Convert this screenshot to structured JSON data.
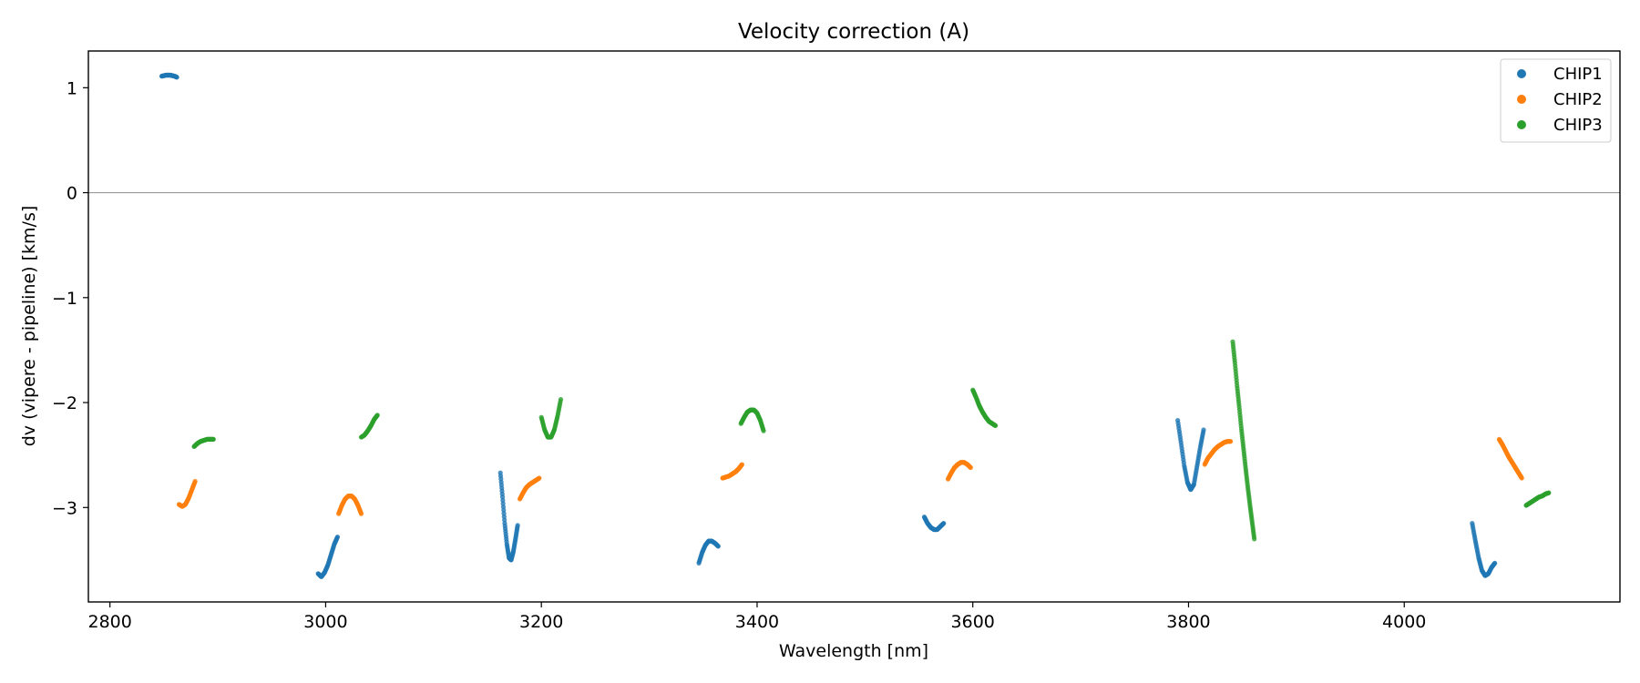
{
  "chart_data": {
    "type": "scatter",
    "title": "Velocity correction (A)",
    "xlabel": "Wavelength [nm]",
    "ylabel": "dv (vipere - pipeline) [km/s]",
    "xlim": [
      2780,
      4200
    ],
    "ylim": [
      -3.9,
      1.35
    ],
    "xticks": [
      2800,
      3000,
      3200,
      3400,
      3600,
      3800,
      4000
    ],
    "yticks": [
      1,
      0,
      -1,
      -2,
      -3
    ],
    "xtick_labels": [
      "2800",
      "3000",
      "3200",
      "3400",
      "3600",
      "3800",
      "4000"
    ],
    "ytick_labels": [
      "1",
      "0",
      "−1",
      "−2",
      "−3"
    ],
    "reference_line": {
      "y": 0,
      "color": "#999999"
    },
    "legend_position": "top-right",
    "series": [
      {
        "name": "CHIP1",
        "color": "#1f77b4",
        "segments": [
          {
            "x": [
              2848,
              2850,
              2852,
              2854,
              2856,
              2858,
              2860,
              2862
            ],
            "y": [
              1.11,
              1.115,
              1.12,
              1.12,
              1.12,
              1.115,
              1.11,
              1.1
            ]
          },
          {
            "x": [
              2993,
              2996,
              2999,
              3002,
              3005,
              3008,
              3011
            ],
            "y": [
              -3.63,
              -3.66,
              -3.62,
              -3.55,
              -3.45,
              -3.35,
              -3.28
            ]
          },
          {
            "x": [
              3162,
              3164,
              3166,
              3168,
              3170,
              3172,
              3174,
              3176,
              3178
            ],
            "y": [
              -2.67,
              -2.9,
              -3.15,
              -3.35,
              -3.48,
              -3.5,
              -3.42,
              -3.3,
              -3.17
            ]
          },
          {
            "x": [
              3346,
              3349,
              3352,
              3355,
              3358,
              3361,
              3364
            ],
            "y": [
              -3.53,
              -3.43,
              -3.36,
              -3.32,
              -3.32,
              -3.34,
              -3.37
            ]
          },
          {
            "x": [
              3555,
              3558,
              3561,
              3564,
              3567,
              3570,
              3573
            ],
            "y": [
              -3.09,
              -3.15,
              -3.19,
              -3.21,
              -3.21,
              -3.18,
              -3.15
            ]
          },
          {
            "x": [
              3790,
              3793,
              3796,
              3799,
              3802,
              3805,
              3808,
              3811,
              3814
            ],
            "y": [
              -2.17,
              -2.38,
              -2.6,
              -2.76,
              -2.83,
              -2.78,
              -2.6,
              -2.42,
              -2.26
            ]
          },
          {
            "x": [
              4063,
              4066,
              4069,
              4072,
              4075,
              4078,
              4081,
              4084
            ],
            "y": [
              -3.15,
              -3.32,
              -3.48,
              -3.6,
              -3.65,
              -3.63,
              -3.57,
              -3.53
            ]
          }
        ]
      },
      {
        "name": "CHIP2",
        "color": "#ff7f0e",
        "segments": [
          {
            "x": [
              2864,
              2867,
              2870,
              2873,
              2876,
              2879
            ],
            "y": [
              -2.97,
              -2.99,
              -2.97,
              -2.91,
              -2.83,
              -2.75
            ]
          },
          {
            "x": [
              3012,
              3015,
              3018,
              3021,
              3024,
              3027,
              3030,
              3033
            ],
            "y": [
              -3.06,
              -2.98,
              -2.92,
              -2.89,
              -2.89,
              -2.92,
              -2.98,
              -3.06
            ]
          },
          {
            "x": [
              3180,
              3183,
              3186,
              3189,
              3192,
              3195,
              3198
            ],
            "y": [
              -2.92,
              -2.86,
              -2.81,
              -2.78,
              -2.76,
              -2.74,
              -2.72
            ]
          },
          {
            "x": [
              3368,
              3371,
              3374,
              3377,
              3380,
              3383,
              3386
            ],
            "y": [
              -2.72,
              -2.71,
              -2.7,
              -2.68,
              -2.66,
              -2.63,
              -2.59
            ]
          },
          {
            "x": [
              3577,
              3580,
              3583,
              3586,
              3589,
              3592,
              3595,
              3598
            ],
            "y": [
              -2.73,
              -2.67,
              -2.62,
              -2.59,
              -2.57,
              -2.57,
              -2.59,
              -2.62
            ]
          },
          {
            "x": [
              3815,
              3818,
              3821,
              3824,
              3827,
              3830,
              3833,
              3836,
              3839
            ],
            "y": [
              -2.59,
              -2.53,
              -2.49,
              -2.45,
              -2.42,
              -2.4,
              -2.38,
              -2.37,
              -2.37
            ]
          },
          {
            "x": [
              4088,
              4091,
              4094,
              4097,
              4100,
              4103,
              4106,
              4109
            ],
            "y": [
              -2.35,
              -2.4,
              -2.46,
              -2.52,
              -2.57,
              -2.62,
              -2.67,
              -2.72
            ]
          }
        ]
      },
      {
        "name": "CHIP3",
        "color": "#2ca02c",
        "segments": [
          {
            "x": [
              2878,
              2881,
              2884,
              2887,
              2890,
              2893,
              2896
            ],
            "y": [
              -2.42,
              -2.39,
              -2.37,
              -2.36,
              -2.35,
              -2.35,
              -2.35
            ]
          },
          {
            "x": [
              3033,
              3036,
              3039,
              3042,
              3045,
              3048
            ],
            "y": [
              -2.33,
              -2.31,
              -2.27,
              -2.22,
              -2.16,
              -2.12
            ]
          },
          {
            "x": [
              3200,
              3203,
              3206,
              3209,
              3212,
              3215,
              3218
            ],
            "y": [
              -2.14,
              -2.26,
              -2.33,
              -2.33,
              -2.26,
              -2.13,
              -1.97
            ]
          },
          {
            "x": [
              3385,
              3388,
              3391,
              3394,
              3397,
              3400,
              3403,
              3406
            ],
            "y": [
              -2.2,
              -2.14,
              -2.09,
              -2.07,
              -2.07,
              -2.1,
              -2.17,
              -2.27
            ]
          },
          {
            "x": [
              3600,
              3603,
              3606,
              3609,
              3612,
              3615,
              3618,
              3621
            ],
            "y": [
              -1.88,
              -1.95,
              -2.03,
              -2.09,
              -2.14,
              -2.18,
              -2.2,
              -2.22
            ]
          },
          {
            "x": [
              3841,
              3843,
              3845,
              3847,
              3849,
              3851,
              3853,
              3855,
              3857,
              3859,
              3861
            ],
            "y": [
              -1.42,
              -1.62,
              -1.84,
              -2.04,
              -2.25,
              -2.44,
              -2.63,
              -2.81,
              -2.98,
              -3.14,
              -3.3
            ]
          },
          {
            "x": [
              4113,
              4116,
              4119,
              4122,
              4125,
              4128,
              4131,
              4134
            ],
            "y": [
              -2.98,
              -2.96,
              -2.94,
              -2.92,
              -2.9,
              -2.89,
              -2.87,
              -2.86
            ]
          }
        ]
      }
    ]
  }
}
